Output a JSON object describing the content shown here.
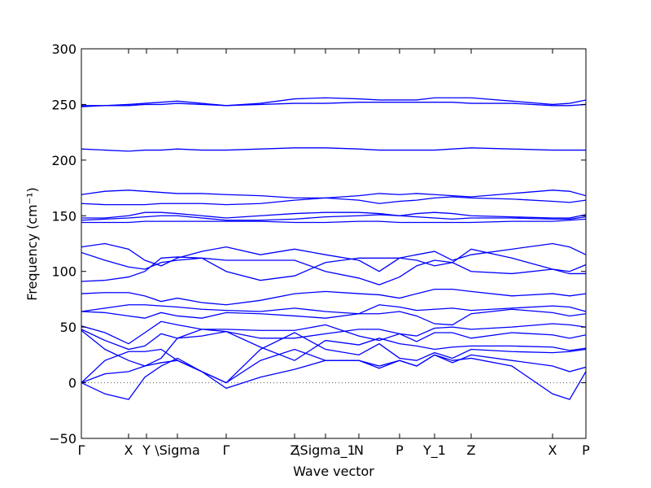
{
  "chart_data": {
    "type": "line",
    "xlabel": "Wave vector",
    "ylabel": "Frequency (cm⁻¹)",
    "color": "#0000ff",
    "xlim": [
      0,
      620
    ],
    "ylim": [
      -50,
      300
    ],
    "yticks": [
      {
        "value": -50,
        "label": "−50"
      },
      0,
      50,
      100,
      150,
      200,
      250,
      300
    ],
    "xticks": [
      {
        "value": 0,
        "label": "Γ"
      },
      {
        "value": 58,
        "label": "X"
      },
      {
        "value": 80,
        "label": "Y"
      },
      {
        "value": 118,
        "label": "\\Sigma"
      },
      {
        "value": 178,
        "label": "Γ"
      },
      {
        "value": 262,
        "label": "Z"
      },
      {
        "value": 300,
        "label": "\\Sigma_1"
      },
      {
        "value": 341,
        "label": "N"
      },
      {
        "value": 391,
        "label": "P"
      },
      {
        "value": 434,
        "label": "Y_1"
      },
      {
        "value": 479,
        "label": "Z"
      },
      {
        "value": 579,
        "label": "X"
      },
      {
        "value": 620,
        "label": "P"
      }
    ],
    "x": [
      0,
      29,
      58,
      78,
      98,
      118,
      148,
      178,
      220,
      262,
      300,
      341,
      366,
      391,
      412,
      434,
      456,
      479,
      529,
      579,
      600,
      620
    ],
    "series": [
      {
        "values": [
          249,
          249,
          250,
          251,
          252,
          253,
          251,
          249,
          251,
          255,
          256,
          255,
          254,
          254,
          254,
          256,
          256,
          256,
          253,
          250,
          251,
          254
        ]
      },
      {
        "values": [
          248,
          249,
          249,
          250,
          250,
          251,
          250,
          249,
          250,
          251,
          251,
          252,
          252,
          252,
          252,
          252,
          252,
          251,
          251,
          249,
          249,
          250
        ]
      },
      {
        "values": [
          210,
          209,
          208,
          209,
          209,
          210,
          209,
          209,
          210,
          211,
          211,
          210,
          209,
          209,
          209,
          209,
          210,
          211,
          210,
          209,
          209,
          209
        ]
      },
      {
        "values": [
          169,
          172,
          173,
          172,
          171,
          170,
          170,
          169,
          168,
          166,
          166,
          168,
          170,
          169,
          170,
          169,
          168,
          167,
          170,
          173,
          172,
          168
        ]
      },
      {
        "values": [
          161,
          160,
          160,
          160,
          161,
          161,
          161,
          160,
          161,
          164,
          166,
          164,
          161,
          163,
          164,
          166,
          167,
          166,
          165,
          163,
          162,
          164
        ]
      },
      {
        "values": [
          148,
          148,
          150,
          153,
          153,
          152,
          150,
          148,
          150,
          152,
          153,
          153,
          152,
          150,
          152,
          153,
          152,
          150,
          149,
          148,
          148,
          151
        ]
      },
      {
        "values": [
          146,
          147,
          148,
          149,
          150,
          150,
          148,
          146,
          146,
          147,
          149,
          150,
          151,
          150,
          149,
          148,
          147,
          148,
          148,
          147,
          147,
          149
        ]
      },
      {
        "values": [
          144,
          144,
          144,
          145,
          145,
          145,
          145,
          145,
          145,
          144,
          144,
          145,
          145,
          144,
          144,
          144,
          144,
          144,
          145,
          145,
          146,
          147
        ]
      },
      {
        "values": [
          122,
          125,
          120,
          110,
          105,
          112,
          118,
          122,
          115,
          120,
          115,
          110,
          100,
          112,
          115,
          118,
          110,
          115,
          120,
          125,
          122,
          115
        ]
      },
      {
        "values": [
          117,
          110,
          104,
          102,
          108,
          110,
          112,
          110,
          110,
          110,
          100,
          94,
          88,
          95,
          105,
          110,
          108,
          100,
          98,
          102,
          100,
          106
        ]
      },
      {
        "values": [
          91,
          92,
          95,
          100,
          112,
          113,
          112,
          100,
          92,
          96,
          108,
          112,
          112,
          112,
          110,
          105,
          108,
          120,
          112,
          102,
          98,
          98
        ]
      },
      {
        "values": [
          80,
          81,
          81,
          78,
          73,
          76,
          72,
          70,
          74,
          80,
          82,
          80,
          79,
          76,
          80,
          84,
          84,
          82,
          78,
          80,
          78,
          80
        ]
      },
      {
        "values": [
          64,
          67,
          70,
          70,
          69,
          68,
          66,
          65,
          64,
          67,
          64,
          62,
          70,
          68,
          65,
          66,
          67,
          65,
          67,
          69,
          68,
          64
        ]
      },
      {
        "values": [
          64,
          63,
          60,
          58,
          63,
          60,
          58,
          63,
          62,
          60,
          58,
          62,
          62,
          64,
          60,
          53,
          52,
          62,
          66,
          63,
          60,
          62
        ]
      },
      {
        "values": [
          51,
          45,
          35,
          45,
          55,
          52,
          48,
          48,
          47,
          47,
          52,
          42,
          38,
          44,
          42,
          49,
          50,
          48,
          50,
          53,
          52,
          50
        ]
      },
      {
        "values": [
          48,
          38,
          30,
          33,
          44,
          40,
          42,
          46,
          40,
          40,
          44,
          48,
          48,
          44,
          37,
          45,
          45,
          40,
          45,
          43,
          40,
          43
        ]
      },
      {
        "values": [
          47,
          30,
          20,
          15,
          22,
          40,
          48,
          46,
          32,
          20,
          38,
          34,
          40,
          35,
          33,
          30,
          32,
          33,
          33,
          32,
          29,
          31
        ]
      },
      {
        "values": [
          0,
          20,
          28,
          28,
          30,
          20,
          10,
          0,
          30,
          45,
          30,
          25,
          35,
          22,
          20,
          27,
          22,
          30,
          28,
          27,
          28,
          30
        ]
      },
      {
        "values": [
          0,
          8,
          10,
          15,
          18,
          20,
          10,
          0,
          20,
          30,
          20,
          20,
          15,
          20,
          15,
          25,
          18,
          25,
          20,
          15,
          10,
          14
        ]
      },
      {
        "values": [
          0,
          -10,
          -15,
          5,
          15,
          22,
          10,
          -5,
          5,
          12,
          20,
          20,
          13,
          20,
          15,
          25,
          20,
          22,
          15,
          -10,
          -15,
          10
        ]
      }
    ]
  }
}
